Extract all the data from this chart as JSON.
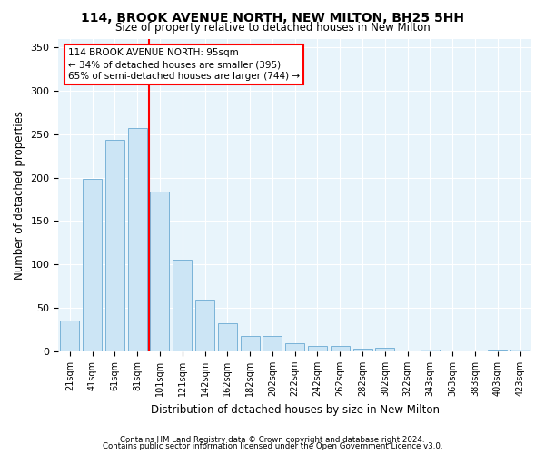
{
  "title": "114, BROOK AVENUE NORTH, NEW MILTON, BH25 5HH",
  "subtitle": "Size of property relative to detached houses in New Milton",
  "xlabel": "Distribution of detached houses by size in New Milton",
  "ylabel": "Number of detached properties",
  "bar_labels": [
    "21sqm",
    "41sqm",
    "61sqm",
    "81sqm",
    "101sqm",
    "121sqm",
    "142sqm",
    "162sqm",
    "182sqm",
    "202sqm",
    "222sqm",
    "242sqm",
    "262sqm",
    "282sqm",
    "302sqm",
    "322sqm",
    "343sqm",
    "363sqm",
    "383sqm",
    "403sqm",
    "423sqm"
  ],
  "bar_values": [
    35,
    199,
    243,
    257,
    184,
    106,
    59,
    32,
    18,
    18,
    9,
    6,
    6,
    3,
    4,
    0,
    2,
    0,
    0,
    1,
    2
  ],
  "bar_color": "#cce5f5",
  "bar_edge_color": "#7ab3d8",
  "red_line_index": 4,
  "annotation_title": "114 BROOK AVENUE NORTH: 95sqm",
  "annotation_line2": "← 34% of detached houses are smaller (395)",
  "annotation_line3": "65% of semi-detached houses are larger (744) →",
  "ylim": [
    0,
    360
  ],
  "yticks": [
    0,
    50,
    100,
    150,
    200,
    250,
    300,
    350
  ],
  "background_color": "#e8f4fb",
  "footer1": "Contains HM Land Registry data © Crown copyright and database right 2024.",
  "footer2": "Contains public sector information licensed under the Open Government Licence v3.0."
}
